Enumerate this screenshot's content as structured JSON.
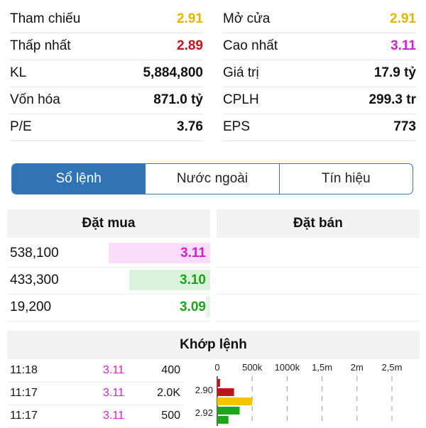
{
  "stats": [
    {
      "left_label": "Tham chiếu",
      "left_value": "2.91",
      "left_color": "#e0b400",
      "right_label": "Mở cửa",
      "right_value": "2.91",
      "right_color": "#e0b400"
    },
    {
      "left_label": "Thấp nhất",
      "left_value": "2.89",
      "left_color": "#c0141c",
      "right_label": "Cao nhất",
      "right_value": "3.11",
      "right_color": "#d21fd2"
    },
    {
      "left_label": "KL",
      "left_value": "5,884,800",
      "left_color": "#111111",
      "right_label": "Giá trị",
      "right_value": "17.9 tỷ",
      "right_color": "#111111"
    },
    {
      "left_label": "Vốn hóa",
      "left_value": "871.0 tỷ",
      "left_color": "#111111",
      "right_label": "CPLH",
      "right_value": "299.3 tr",
      "right_color": "#111111"
    },
    {
      "left_label": "P/E",
      "left_value": "3.76",
      "left_color": "#111111",
      "right_label": "EPS",
      "right_value": "773",
      "right_color": "#111111"
    }
  ],
  "tabs": [
    {
      "label": "Sổ lệnh",
      "active": true
    },
    {
      "label": "Nước ngoài",
      "active": false
    },
    {
      "label": "Tín hiệu",
      "active": false
    }
  ],
  "orderbook": {
    "buy_header": "Đặt mua",
    "sell_header": "Đặt bán",
    "buy": [
      {
        "volume": "538,100",
        "price": "3.11",
        "price_color": "#d21fd2",
        "bar_color": "#fbdcfb",
        "bar_fraction": 0.5
      },
      {
        "volume": "433,300",
        "price": "3.10",
        "price_color": "#1aa51a",
        "bar_color": "#d9f2d9",
        "bar_fraction": 0.4
      },
      {
        "volume": "19,200",
        "price": "3.09",
        "price_color": "#1aa51a",
        "bar_color": "#e4f4e4",
        "bar_fraction": 0.02
      }
    ]
  },
  "matched": {
    "header": "Khớp lệnh",
    "rows": [
      {
        "time": "11:18",
        "price": "3.11",
        "volume": "400",
        "price_color": "#d21fd2"
      },
      {
        "time": "11:17",
        "price": "3.11",
        "volume": "2.0K",
        "price_color": "#d21fd2"
      },
      {
        "time": "11:17",
        "price": "3.11",
        "volume": "500",
        "price_color": "#d21fd2"
      }
    ]
  },
  "chart_data": {
    "type": "bar",
    "orientation": "horizontal",
    "x_ticks": [
      "0",
      "500k",
      "1000k",
      "1,5m",
      "2m",
      "2,5m"
    ],
    "x_range": [
      0,
      2500000
    ],
    "y_labels": [
      "2.90",
      "2.92"
    ],
    "bars": [
      {
        "value": 40000,
        "color": "#c0141c"
      },
      {
        "value": 240000,
        "color": "#c0141c"
      },
      {
        "value": 500000,
        "color": "#f5c400"
      },
      {
        "value": 320000,
        "color": "#1aa51a"
      },
      {
        "value": 160000,
        "color": "#1aa51a"
      }
    ]
  }
}
